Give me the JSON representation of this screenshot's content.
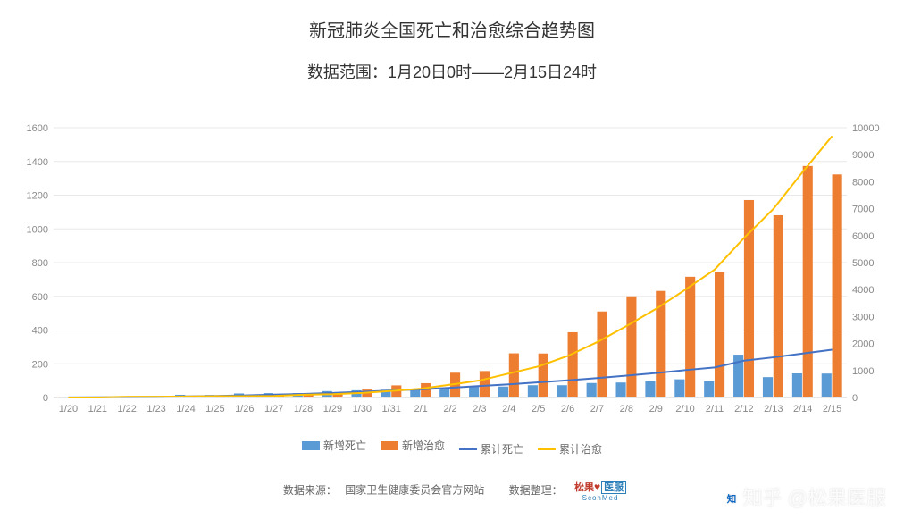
{
  "header": {
    "title": "新冠肺炎全国死亡和治愈综合趋势图",
    "subtitle": "数据范围：1月20日0时——2月15日24时"
  },
  "chart": {
    "type": "bar+line-dual-axis",
    "background_color": "#ffffff",
    "grid_color": "#e8e8e8",
    "axis_text_color": "#888",
    "axis_fontsize": 11,
    "categories": [
      "1/20",
      "1/21",
      "1/22",
      "1/23",
      "1/24",
      "1/25",
      "1/26",
      "1/27",
      "1/28",
      "1/29",
      "1/30",
      "1/31",
      "2/1",
      "2/2",
      "2/3",
      "2/4",
      "2/5",
      "2/6",
      "2/7",
      "2/8",
      "2/9",
      "2/10",
      "2/11",
      "2/12",
      "2/13",
      "2/14",
      "2/15"
    ],
    "left_axis": {
      "min": 0,
      "max": 1600,
      "step": 200
    },
    "right_axis": {
      "min": 0,
      "max": 10000,
      "step": 1000
    },
    "bar_group_width": 0.72,
    "series": {
      "new_deaths": {
        "label": "新增死亡",
        "type": "bar",
        "axis": "left",
        "color": "#5b9bd5",
        "values": [
          3,
          3,
          8,
          8,
          16,
          15,
          24,
          26,
          26,
          38,
          43,
          46,
          45,
          57,
          64,
          65,
          73,
          73,
          86,
          89,
          97,
          108,
          97,
          254,
          121,
          143,
          142
        ]
      },
      "new_cured": {
        "label": "新增治愈",
        "type": "bar",
        "axis": "left",
        "color": "#ed7d31",
        "values": [
          0,
          0,
          3,
          2,
          5,
          7,
          9,
          9,
          21,
          22,
          47,
          72,
          85,
          147,
          157,
          262,
          261,
          387,
          510,
          600,
          632,
          716,
          744,
          1171,
          1081,
          1373,
          1323
        ]
      },
      "cum_deaths": {
        "label": "累计死亡",
        "type": "line",
        "axis": "right",
        "color": "#4472c4",
        "line_width": 2,
        "values": [
          6,
          9,
          17,
          25,
          41,
          56,
          80,
          106,
          132,
          170,
          213,
          259,
          304,
          361,
          425,
          490,
          563,
          636,
          722,
          811,
          908,
          1016,
          1113,
          1367,
          1488,
          1631,
          1773
        ]
      },
      "cum_cured": {
        "label": "累计治愈",
        "type": "line",
        "axis": "right",
        "color": "#ffc000",
        "line_width": 2,
        "values": [
          0,
          0,
          28,
          30,
          38,
          49,
          51,
          60,
          103,
          124,
          171,
          243,
          328,
          475,
          632,
          892,
          1153,
          1540,
          2050,
          2649,
          3281,
          3996,
          4740,
          5911,
          6992,
          8365,
          9688
        ]
      }
    },
    "legend_order": [
      "new_deaths",
      "new_cured",
      "cum_deaths",
      "cum_cured"
    ]
  },
  "footer": {
    "source_label": "数据来源：",
    "source_value": "国家卫生健康委员会官方网站",
    "org_label": "数据整理：",
    "logo_text_a": "松果",
    "logo_text_b": "医服",
    "logo_sub": "ScohMed"
  },
  "watermark": {
    "text": "知乎 @松果医服"
  }
}
